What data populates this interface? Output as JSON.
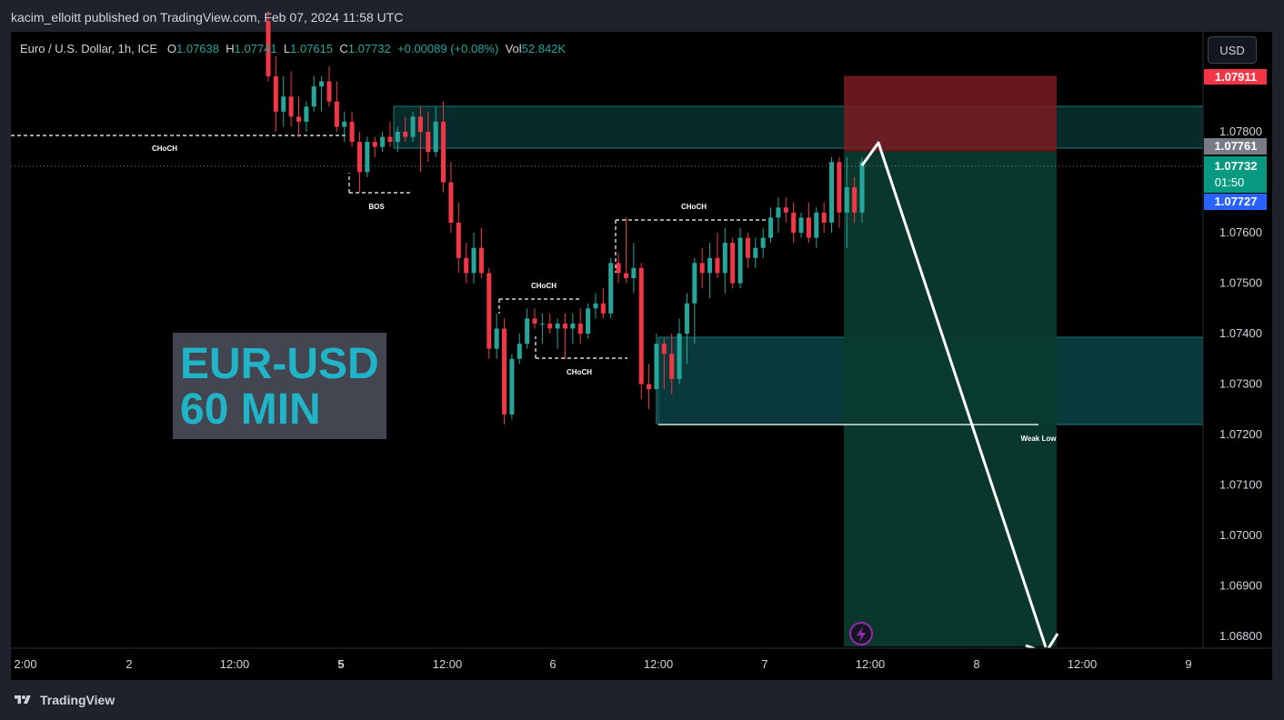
{
  "header": {
    "publisher_line": "kacim_elloitt published on TradingView.com, Feb 07, 2024 11:58 UTC"
  },
  "legend": {
    "symbol": "Euro / U.S. Dollar, 1h, ICE",
    "open_label": "O",
    "open": "1.07638",
    "high_label": "H",
    "high": "1.07741",
    "low_label": "L",
    "low": "1.07615",
    "close_label": "C",
    "close": "1.07732",
    "change": "+0.00089 (+0.08%)",
    "vol_label": "Vol",
    "vol": "52.842K"
  },
  "currency_button": "USD",
  "footer": {
    "brand": "TradingView"
  },
  "overlay": {
    "line1": "EUR-USD",
    "line2": "60 MIN"
  },
  "annotations": {
    "choch_1": "CHoCH",
    "bos": "BOS",
    "choch_2": "CHoCH",
    "choch_3": "CHoCH",
    "choch_4": "CHoCH",
    "weak_low": "Weak Low"
  },
  "price_tags": {
    "stop": "1.07911",
    "entry": "1.07761",
    "last": "1.07732",
    "countdown": "01:50",
    "bid": "1.07727"
  },
  "colors": {
    "up": "#26a69a",
    "down": "#f23645",
    "zone": "#0d4c4f",
    "stop_zone": "#7a1c22",
    "target_zone": "#093a2e",
    "arrow": "#ffffff"
  },
  "chart_data": {
    "type": "candlestick",
    "y_axis": {
      "ticks": [
        "1.07800",
        "1.07700",
        "1.07600",
        "1.07500",
        "1.07400",
        "1.07300",
        "1.07200",
        "1.07100",
        "1.07000",
        "1.06900",
        "1.06800"
      ],
      "range": [
        1.0678,
        1.0804
      ]
    },
    "x_axis": {
      "ticks": [
        "2:00",
        "2",
        "12:00",
        "5",
        "12:00",
        "6",
        "12:00",
        "7",
        "12:00",
        "8",
        "12:00",
        "9"
      ]
    },
    "position": {
      "type": "short",
      "entry": 1.07761,
      "stop": 1.07911,
      "target": 1.0678
    },
    "candles": [
      {
        "o": 1.0802,
        "h": 1.0804,
        "l": 1.079,
        "c": 1.0791
      },
      {
        "o": 1.0791,
        "h": 1.0795,
        "l": 1.078,
        "c": 1.0784
      },
      {
        "o": 1.0784,
        "h": 1.0791,
        "l": 1.0781,
        "c": 1.0787
      },
      {
        "o": 1.0787,
        "h": 1.0792,
        "l": 1.0781,
        "c": 1.0783
      },
      {
        "o": 1.0783,
        "h": 1.0787,
        "l": 1.0779,
        "c": 1.0782
      },
      {
        "o": 1.0782,
        "h": 1.0786,
        "l": 1.078,
        "c": 1.0785
      },
      {
        "o": 1.0785,
        "h": 1.0791,
        "l": 1.0784,
        "c": 1.0789
      },
      {
        "o": 1.0789,
        "h": 1.0791,
        "l": 1.0784,
        "c": 1.079
      },
      {
        "o": 1.079,
        "h": 1.0793,
        "l": 1.0785,
        "c": 1.0786
      },
      {
        "o": 1.0786,
        "h": 1.079,
        "l": 1.078,
        "c": 1.0781
      },
      {
        "o": 1.0781,
        "h": 1.0784,
        "l": 1.0778,
        "c": 1.0782
      },
      {
        "o": 1.0782,
        "h": 1.0784,
        "l": 1.0777,
        "c": 1.0778
      },
      {
        "o": 1.0778,
        "h": 1.078,
        "l": 1.0768,
        "c": 1.0772
      },
      {
        "o": 1.0772,
        "h": 1.0779,
        "l": 1.0771,
        "c": 1.0778
      },
      {
        "o": 1.0778,
        "h": 1.0779,
        "l": 1.0775,
        "c": 1.0777
      },
      {
        "o": 1.0777,
        "h": 1.078,
        "l": 1.0776,
        "c": 1.0779
      },
      {
        "o": 1.0779,
        "h": 1.0782,
        "l": 1.0777,
        "c": 1.0778
      },
      {
        "o": 1.0778,
        "h": 1.0781,
        "l": 1.0776,
        "c": 1.078
      },
      {
        "o": 1.078,
        "h": 1.0783,
        "l": 1.0778,
        "c": 1.0779
      },
      {
        "o": 1.0779,
        "h": 1.0784,
        "l": 1.0778,
        "c": 1.0783
      },
      {
        "o": 1.0783,
        "h": 1.0785,
        "l": 1.0772,
        "c": 1.078
      },
      {
        "o": 1.078,
        "h": 1.0784,
        "l": 1.0774,
        "c": 1.0776
      },
      {
        "o": 1.0776,
        "h": 1.0785,
        "l": 1.0775,
        "c": 1.0782
      },
      {
        "o": 1.0782,
        "h": 1.0786,
        "l": 1.0768,
        "c": 1.077
      },
      {
        "o": 1.077,
        "h": 1.0774,
        "l": 1.076,
        "c": 1.0762
      },
      {
        "o": 1.0762,
        "h": 1.0766,
        "l": 1.0752,
        "c": 1.0755
      },
      {
        "o": 1.0755,
        "h": 1.0758,
        "l": 1.075,
        "c": 1.0752
      },
      {
        "o": 1.0752,
        "h": 1.076,
        "l": 1.075,
        "c": 1.0757
      },
      {
        "o": 1.0757,
        "h": 1.0761,
        "l": 1.0751,
        "c": 1.0752
      },
      {
        "o": 1.0752,
        "h": 1.0753,
        "l": 1.0735,
        "c": 1.0737
      },
      {
        "o": 1.0737,
        "h": 1.0744,
        "l": 1.0735,
        "c": 1.0741
      },
      {
        "o": 1.0741,
        "h": 1.0743,
        "l": 1.0722,
        "c": 1.0724
      },
      {
        "o": 1.0724,
        "h": 1.0736,
        "l": 1.0723,
        "c": 1.0735
      },
      {
        "o": 1.0735,
        "h": 1.074,
        "l": 1.0734,
        "c": 1.0738
      },
      {
        "o": 1.0738,
        "h": 1.0745,
        "l": 1.0737,
        "c": 1.0743
      },
      {
        "o": 1.0743,
        "h": 1.0745,
        "l": 1.0741,
        "c": 1.0742
      },
      {
        "o": 1.0742,
        "h": 1.0744,
        "l": 1.0738,
        "c": 1.0742
      },
      {
        "o": 1.0742,
        "h": 1.0744,
        "l": 1.074,
        "c": 1.0741
      },
      {
        "o": 1.0741,
        "h": 1.0743,
        "l": 1.0737,
        "c": 1.0742
      },
      {
        "o": 1.0742,
        "h": 1.0744,
        "l": 1.0735,
        "c": 1.0741
      },
      {
        "o": 1.0741,
        "h": 1.0744,
        "l": 1.0738,
        "c": 1.0742
      },
      {
        "o": 1.0742,
        "h": 1.0745,
        "l": 1.0738,
        "c": 1.074
      },
      {
        "o": 1.074,
        "h": 1.0746,
        "l": 1.0739,
        "c": 1.0745
      },
      {
        "o": 1.0745,
        "h": 1.0748,
        "l": 1.0743,
        "c": 1.0746
      },
      {
        "o": 1.0746,
        "h": 1.0749,
        "l": 1.0743,
        "c": 1.0744
      },
      {
        "o": 1.0744,
        "h": 1.0755,
        "l": 1.0743,
        "c": 1.0754
      },
      {
        "o": 1.0754,
        "h": 1.0756,
        "l": 1.075,
        "c": 1.0752
      },
      {
        "o": 1.0752,
        "h": 1.0763,
        "l": 1.075,
        "c": 1.0751
      },
      {
        "o": 1.0751,
        "h": 1.0758,
        "l": 1.0748,
        "c": 1.0753
      },
      {
        "o": 1.0753,
        "h": 1.0754,
        "l": 1.0727,
        "c": 1.073
      },
      {
        "o": 1.073,
        "h": 1.0734,
        "l": 1.0725,
        "c": 1.0729
      },
      {
        "o": 1.0729,
        "h": 1.074,
        "l": 1.0722,
        "c": 1.0738
      },
      {
        "o": 1.0738,
        "h": 1.0739,
        "l": 1.0729,
        "c": 1.0736
      },
      {
        "o": 1.0736,
        "h": 1.074,
        "l": 1.0728,
        "c": 1.0731
      },
      {
        "o": 1.0731,
        "h": 1.0743,
        "l": 1.073,
        "c": 1.074
      },
      {
        "o": 1.074,
        "h": 1.0748,
        "l": 1.0734,
        "c": 1.0746
      },
      {
        "o": 1.0746,
        "h": 1.0755,
        "l": 1.0738,
        "c": 1.0754
      },
      {
        "o": 1.0754,
        "h": 1.0757,
        "l": 1.0749,
        "c": 1.0752
      },
      {
        "o": 1.0752,
        "h": 1.0758,
        "l": 1.0747,
        "c": 1.0755
      },
      {
        "o": 1.0755,
        "h": 1.076,
        "l": 1.0751,
        "c": 1.0752
      },
      {
        "o": 1.0752,
        "h": 1.0761,
        "l": 1.0748,
        "c": 1.0758
      },
      {
        "o": 1.0758,
        "h": 1.0759,
        "l": 1.0749,
        "c": 1.075
      },
      {
        "o": 1.075,
        "h": 1.0761,
        "l": 1.0749,
        "c": 1.0759
      },
      {
        "o": 1.0759,
        "h": 1.076,
        "l": 1.0753,
        "c": 1.0755
      },
      {
        "o": 1.0755,
        "h": 1.0759,
        "l": 1.0753,
        "c": 1.0757
      },
      {
        "o": 1.0757,
        "h": 1.0761,
        "l": 1.0755,
        "c": 1.0759
      },
      {
        "o": 1.0759,
        "h": 1.0765,
        "l": 1.0758,
        "c": 1.0763
      },
      {
        "o": 1.0763,
        "h": 1.0767,
        "l": 1.076,
        "c": 1.0765
      },
      {
        "o": 1.0765,
        "h": 1.0767,
        "l": 1.0762,
        "c": 1.0764
      },
      {
        "o": 1.0764,
        "h": 1.0766,
        "l": 1.0758,
        "c": 1.076
      },
      {
        "o": 1.076,
        "h": 1.0764,
        "l": 1.0759,
        "c": 1.0763
      },
      {
        "o": 1.0763,
        "h": 1.0766,
        "l": 1.0758,
        "c": 1.0759
      },
      {
        "o": 1.0759,
        "h": 1.0765,
        "l": 1.0757,
        "c": 1.0764
      },
      {
        "o": 1.0764,
        "h": 1.0766,
        "l": 1.076,
        "c": 1.0762
      },
      {
        "o": 1.0762,
        "h": 1.0775,
        "l": 1.076,
        "c": 1.0774
      },
      {
        "o": 1.0774,
        "h": 1.0775,
        "l": 1.0761,
        "c": 1.0764
      },
      {
        "o": 1.0764,
        "h": 1.0775,
        "l": 1.0757,
        "c": 1.0769
      },
      {
        "o": 1.0769,
        "h": 1.0771,
        "l": 1.0762,
        "c": 1.0764
      },
      {
        "o": 1.0764,
        "h": 1.0775,
        "l": 1.0762,
        "c": 1.0774
      }
    ]
  }
}
